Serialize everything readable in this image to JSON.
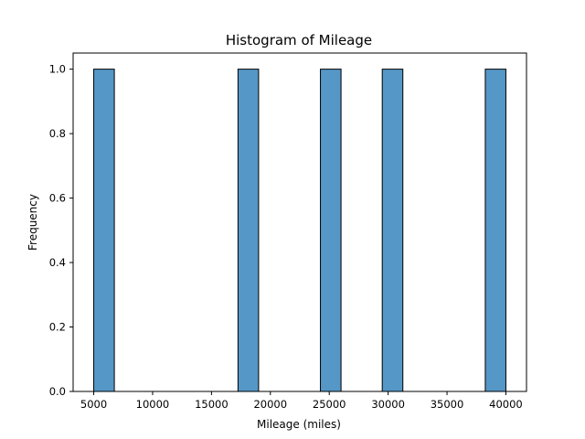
{
  "chart_data": {
    "type": "bar",
    "title": "Histogram of Mileage",
    "xlabel": "Mileage (miles)",
    "ylabel": "Frequency",
    "bins": [
      {
        "x_start": 5000,
        "x_end": 6750,
        "count": 1
      },
      {
        "x_start": 17250,
        "x_end": 19000,
        "count": 1
      },
      {
        "x_start": 24250,
        "x_end": 26000,
        "count": 1
      },
      {
        "x_start": 29500,
        "x_end": 31250,
        "count": 1
      },
      {
        "x_start": 38250,
        "x_end": 40000,
        "count": 1
      }
    ],
    "xlim": [
      3250,
      41750
    ],
    "ylim": [
      0,
      1.05
    ],
    "xticks": [
      5000,
      10000,
      15000,
      20000,
      25000,
      30000,
      35000,
      40000
    ],
    "yticks": [
      "0.0",
      "0.2",
      "0.4",
      "0.6",
      "0.8",
      "1.0"
    ],
    "grid": false,
    "colors": {
      "bar_fill": "#5597c6",
      "bar_edge": "#000000",
      "axis": "#000000"
    }
  }
}
